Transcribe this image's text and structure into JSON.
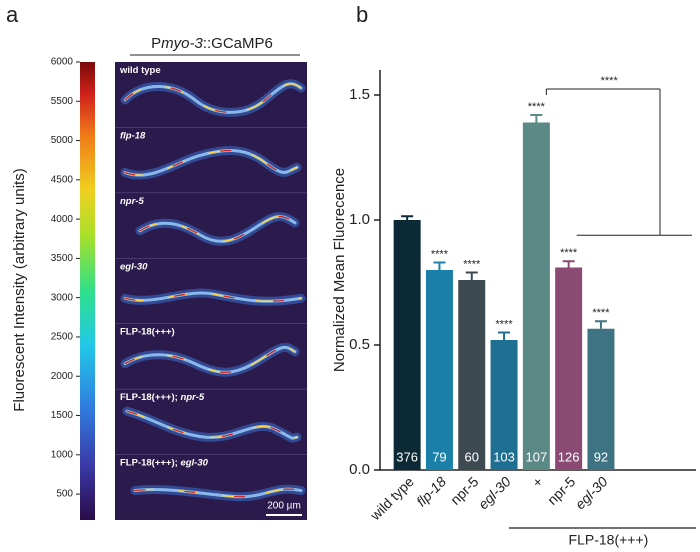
{
  "panel_a": {
    "letter": "a",
    "title": {
      "prefix": "P",
      "italic": "myo-3",
      "suffix": "::GCaMP6"
    },
    "colorbar_label": "Fluorescent Intensity (arbitrary units)",
    "clim": [
      170,
      6000
    ],
    "cticks": [
      500,
      1000,
      1500,
      2000,
      2500,
      3000,
      3500,
      4000,
      4500,
      5000,
      5500,
      6000
    ],
    "rows": [
      {
        "label": "wild type"
      },
      {
        "label_italic": "flp-18"
      },
      {
        "label_italic": "npr-5"
      },
      {
        "label_italic": "egl-30"
      },
      {
        "label": "FLP-18(+++)"
      },
      {
        "label": "FLP-18(+++);",
        "label_italic": "npr-5"
      },
      {
        "label": "FLP-18(+++);",
        "label_italic": "egl-30"
      }
    ],
    "scale_bar": "200 µm"
  },
  "chart_data": {
    "type": "bar",
    "letter": "b",
    "ylabel": "Normalized Mean Fluorecence",
    "categories": [
      "wild type",
      "flp-18",
      "npr-5",
      "egl-30",
      "+",
      "npr-5",
      "egl-30"
    ],
    "italic": [
      false,
      true,
      false,
      true,
      false,
      false,
      true
    ],
    "values": [
      1.0,
      0.8,
      0.76,
      0.52,
      1.39,
      0.81,
      0.565
    ],
    "errors": [
      0.015,
      0.03,
      0.03,
      0.03,
      0.03,
      0.025,
      0.03
    ],
    "n": [
      376,
      79,
      60,
      103,
      107,
      126,
      92
    ],
    "significance": [
      null,
      "****",
      "****",
      "****",
      "****",
      "****",
      "****"
    ],
    "colors": [
      "#0b2a35",
      "#1a80a8",
      "#3d4a51",
      "#1e6f92",
      "#5b8985",
      "#8b4a74",
      "#3e7383"
    ],
    "group_label": "FLP-18(+++)",
    "comparison_label": "****",
    "ylim": [
      0,
      1.6
    ],
    "yticks": [
      {
        "value": 0,
        "label": "0.0"
      },
      0.5,
      {
        "value": 1,
        "label": "1.0"
      },
      1.5
    ]
  }
}
